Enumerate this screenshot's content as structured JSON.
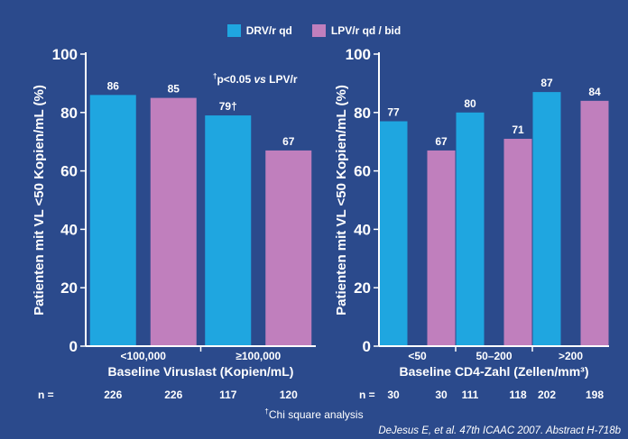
{
  "legend": [
    {
      "label": "DRV/r qd",
      "color": "#1fa6e0"
    },
    {
      "label": "LPV/r qd / bid",
      "color": "#c07fbd"
    }
  ],
  "significance_note": {
    "dagger": "†",
    "pre": "p<0.05 ",
    "vs": "vs",
    "post": " LPV/r"
  },
  "footnote": {
    "dagger": "†",
    "text": "Chi square analysis"
  },
  "citation": "DeJesus E, et al. 47th ICAAC 2007. Abstract H-718b",
  "chart_data": [
    {
      "type": "bar",
      "ylabel": "Patienten mit VL <50 Kopien/mL (%)",
      "xlabel": "Baseline Viruslast (Kopien/mL)",
      "ylim": [
        0,
        100
      ],
      "yticks": [
        0,
        20,
        40,
        60,
        80,
        100
      ],
      "categories": [
        "<100,000",
        "≥100,000"
      ],
      "series": [
        {
          "name": "DRV/r qd",
          "values": [
            86,
            79
          ],
          "labels": [
            "86",
            "79†"
          ]
        },
        {
          "name": "LPV/r qd / bid",
          "values": [
            85,
            67
          ],
          "labels": [
            "85",
            "67"
          ]
        }
      ],
      "n_label": "n =",
      "n": [
        [
          226,
          226
        ],
        [
          117,
          120
        ]
      ]
    },
    {
      "type": "bar",
      "ylabel": "Patienten mit VL <50 Kopien/mL (%)",
      "xlabel": "Baseline CD4-Zahl (Zellen/mm³)",
      "ylim": [
        0,
        100
      ],
      "yticks": [
        0,
        20,
        40,
        60,
        80,
        100
      ],
      "categories": [
        "<50",
        "50–200",
        ">200"
      ],
      "series": [
        {
          "name": "DRV/r qd",
          "values": [
            77,
            80,
            87
          ],
          "labels": [
            "77",
            "80",
            "87"
          ]
        },
        {
          "name": "LPV/r qd / bid",
          "values": [
            67,
            71,
            84
          ],
          "labels": [
            "67",
            "71",
            "84"
          ]
        }
      ],
      "n_label": "n =",
      "n": [
        [
          30,
          30
        ],
        [
          111,
          118
        ],
        [
          202,
          198
        ]
      ]
    }
  ]
}
